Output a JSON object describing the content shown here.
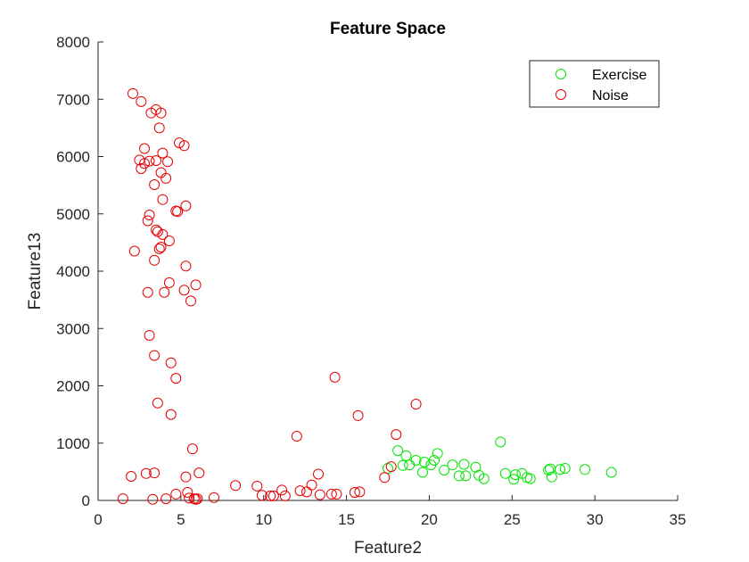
{
  "chart_data": {
    "type": "scatter",
    "title": "Feature Space",
    "xlabel": "Feature2",
    "ylabel": "Feature13",
    "xlim": [
      0,
      35
    ],
    "ylim": [
      0,
      8000
    ],
    "xticks": [
      0,
      5,
      10,
      15,
      20,
      25,
      30,
      35
    ],
    "yticks": [
      0,
      1000,
      2000,
      3000,
      4000,
      5000,
      6000,
      7000,
      8000
    ],
    "grid": false,
    "legend_position": "top-right",
    "marker": "open-circle",
    "series": [
      {
        "name": "Exercise",
        "color": "#00e600",
        "points": [
          [
            17.5,
            560
          ],
          [
            18.1,
            870
          ],
          [
            18.4,
            610
          ],
          [
            18.6,
            780
          ],
          [
            18.8,
            620
          ],
          [
            19.2,
            700
          ],
          [
            19.6,
            490
          ],
          [
            19.7,
            670
          ],
          [
            20.1,
            620
          ],
          [
            20.3,
            700
          ],
          [
            20.5,
            820
          ],
          [
            20.9,
            530
          ],
          [
            21.4,
            620
          ],
          [
            21.8,
            430
          ],
          [
            22.1,
            630
          ],
          [
            22.2,
            430
          ],
          [
            22.8,
            580
          ],
          [
            23.0,
            440
          ],
          [
            23.3,
            380
          ],
          [
            24.3,
            1020
          ],
          [
            24.6,
            470
          ],
          [
            25.1,
            370
          ],
          [
            25.2,
            450
          ],
          [
            25.6,
            470
          ],
          [
            25.9,
            400
          ],
          [
            26.1,
            380
          ],
          [
            27.2,
            530
          ],
          [
            27.3,
            550
          ],
          [
            27.4,
            410
          ],
          [
            27.9,
            540
          ],
          [
            28.2,
            560
          ],
          [
            29.4,
            540
          ],
          [
            31.0,
            490
          ]
        ]
      },
      {
        "name": "Noise",
        "color": "#e60000",
        "points": [
          [
            2.1,
            7100
          ],
          [
            2.6,
            6960
          ],
          [
            3.2,
            6760
          ],
          [
            3.5,
            6820
          ],
          [
            3.8,
            6760
          ],
          [
            3.7,
            6500
          ],
          [
            2.8,
            6140
          ],
          [
            4.9,
            6240
          ],
          [
            5.2,
            6190
          ],
          [
            3.9,
            6060
          ],
          [
            2.5,
            5940
          ],
          [
            3.1,
            5920
          ],
          [
            3.5,
            5930
          ],
          [
            4.2,
            5910
          ],
          [
            2.8,
            5880
          ],
          [
            2.6,
            5790
          ],
          [
            3.8,
            5720
          ],
          [
            4.1,
            5620
          ],
          [
            3.4,
            5510
          ],
          [
            3.9,
            5250
          ],
          [
            5.3,
            5140
          ],
          [
            4.7,
            5050
          ],
          [
            4.8,
            5040
          ],
          [
            3.1,
            4980
          ],
          [
            3.0,
            4880
          ],
          [
            3.5,
            4720
          ],
          [
            3.6,
            4690
          ],
          [
            3.9,
            4640
          ],
          [
            4.3,
            4530
          ],
          [
            3.8,
            4420
          ],
          [
            3.7,
            4390
          ],
          [
            2.2,
            4350
          ],
          [
            3.4,
            4190
          ],
          [
            5.3,
            4090
          ],
          [
            4.3,
            3800
          ],
          [
            5.9,
            3760
          ],
          [
            5.2,
            3670
          ],
          [
            3.0,
            3630
          ],
          [
            4.0,
            3630
          ],
          [
            5.6,
            3480
          ],
          [
            3.1,
            2880
          ],
          [
            3.4,
            2530
          ],
          [
            4.4,
            2400
          ],
          [
            4.7,
            2130
          ],
          [
            3.6,
            1700
          ],
          [
            4.4,
            1500
          ],
          [
            5.7,
            900
          ],
          [
            2.0,
            420
          ],
          [
            2.9,
            470
          ],
          [
            3.4,
            480
          ],
          [
            5.3,
            410
          ],
          [
            6.1,
            480
          ],
          [
            4.7,
            110
          ],
          [
            5.4,
            140
          ],
          [
            3.3,
            20
          ],
          [
            1.5,
            30
          ],
          [
            4.1,
            30
          ],
          [
            5.5,
            40
          ],
          [
            5.8,
            30
          ],
          [
            5.9,
            20
          ],
          [
            6.0,
            30
          ],
          [
            7.0,
            50
          ],
          [
            8.3,
            260
          ],
          [
            9.6,
            250
          ],
          [
            9.9,
            90
          ],
          [
            10.4,
            80
          ],
          [
            10.6,
            80
          ],
          [
            11.1,
            180
          ],
          [
            11.3,
            80
          ],
          [
            12.0,
            1120
          ],
          [
            12.2,
            170
          ],
          [
            12.6,
            150
          ],
          [
            12.9,
            270
          ],
          [
            13.3,
            460
          ],
          [
            13.4,
            100
          ],
          [
            14.1,
            110
          ],
          [
            14.3,
            2150
          ],
          [
            14.4,
            110
          ],
          [
            15.5,
            140
          ],
          [
            15.7,
            1480
          ],
          [
            15.8,
            150
          ],
          [
            17.3,
            400
          ],
          [
            17.7,
            590
          ],
          [
            18.0,
            1150
          ],
          [
            19.2,
            1680
          ]
        ]
      }
    ]
  }
}
